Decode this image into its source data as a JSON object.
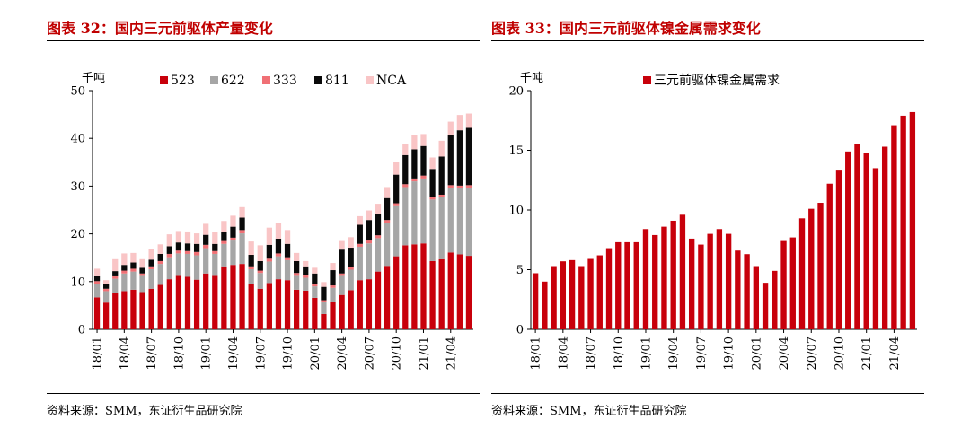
{
  "left": {
    "title": "图表 32：国内三元前驱体产量变化",
    "source": "资料来源：SMM，东证衍生品研究院"
  },
  "right": {
    "title": "图表 33：国内三元前驱体镍金属需求变化",
    "source": "资料来源：SMM，东证衍生品研究院"
  },
  "chart_data": [
    {
      "type": "bar",
      "stacked": true,
      "unit_label": "千吨",
      "ylim": [
        0,
        50
      ],
      "yticks": [
        0,
        10,
        20,
        30,
        40,
        50
      ],
      "categories": [
        "18/01",
        "18/02",
        "18/03",
        "18/04",
        "18/05",
        "18/06",
        "18/07",
        "18/08",
        "18/09",
        "18/10",
        "18/11",
        "18/12",
        "19/01",
        "19/02",
        "19/03",
        "19/04",
        "19/05",
        "19/06",
        "19/07",
        "19/08",
        "19/09",
        "19/10",
        "19/11",
        "19/12",
        "20/01",
        "20/02",
        "20/03",
        "20/04",
        "20/05",
        "20/06",
        "20/07",
        "20/08",
        "20/09",
        "20/10",
        "20/11",
        "20/12",
        "21/01",
        "21/02",
        "21/03",
        "21/04",
        "21/05",
        "21/06"
      ],
      "xtick_labels": [
        "18/01",
        "18/04",
        "18/07",
        "18/10",
        "19/01",
        "19/04",
        "19/07",
        "19/10",
        "20/01",
        "20/04",
        "20/07",
        "20/10",
        "21/01",
        "21/04"
      ],
      "legend_position": "top",
      "series": [
        {
          "name": "523",
          "color": "#c8000b",
          "values": [
            6.7,
            5.6,
            7.6,
            8.0,
            8.3,
            7.8,
            8.5,
            9.3,
            10.5,
            11.2,
            11.0,
            10.4,
            11.7,
            11.2,
            13.2,
            13.5,
            13.7,
            9.5,
            8.5,
            9.7,
            10.5,
            10.3,
            8.3,
            8.1,
            6.6,
            3.2,
            5.7,
            7.2,
            8.2,
            10.3,
            10.5,
            12.1,
            13.3,
            15.3,
            17.6,
            17.8,
            18.0,
            14.3,
            14.7,
            16.1,
            15.7,
            15.4
          ]
        },
        {
          "name": "622",
          "color": "#a6a6a6",
          "values": [
            2.8,
            2.4,
            3.0,
            3.7,
            3.8,
            3.4,
            4.1,
            4.4,
            4.6,
            4.7,
            4.8,
            5.1,
            5.3,
            4.6,
            4.7,
            5.1,
            6.4,
            3.1,
            3.3,
            4.5,
            4.8,
            4.2,
            2.9,
            2.7,
            2.4,
            2.5,
            3.0,
            4.0,
            4.3,
            7.0,
            7.5,
            7.0,
            9.0,
            10.5,
            12.2,
            13.2,
            13.6,
            12.9,
            13.0,
            13.6,
            13.9,
            14.3
          ]
        },
        {
          "name": "333",
          "color": "#f07075",
          "values": [
            0.6,
            0.5,
            0.5,
            0.6,
            0.6,
            0.5,
            0.6,
            0.6,
            0.7,
            0.6,
            0.6,
            0.7,
            0.7,
            0.6,
            0.6,
            0.6,
            0.7,
            0.6,
            0.5,
            0.6,
            0.6,
            0.6,
            0.6,
            0.5,
            0.5,
            0.4,
            0.5,
            0.5,
            0.5,
            0.6,
            0.6,
            0.6,
            0.6,
            0.6,
            0.6,
            0.6,
            0.6,
            0.5,
            0.5,
            0.5,
            0.5,
            0.5
          ]
        },
        {
          "name": "811",
          "color": "#0a0a0a",
          "values": [
            1.0,
            0.9,
            1.1,
            1.2,
            1.3,
            1.2,
            1.4,
            1.5,
            1.6,
            1.7,
            1.6,
            1.7,
            2.1,
            1.5,
            1.9,
            2.3,
            2.6,
            2.4,
            2.0,
            2.9,
            3.1,
            2.8,
            2.5,
            1.9,
            2.2,
            2.8,
            3.2,
            5.0,
            4.1,
            4.0,
            4.3,
            4.4,
            4.6,
            6.0,
            6.1,
            6.1,
            6.2,
            5.9,
            8.0,
            10.5,
            11.6,
            12.0
          ]
        },
        {
          "name": "NCA",
          "color": "#f9c5c6",
          "values": [
            1.6,
            0.9,
            2.5,
            2.4,
            2.0,
            1.8,
            2.2,
            2.0,
            2.5,
            2.4,
            2.5,
            2.2,
            2.3,
            2.4,
            2.3,
            2.3,
            2.2,
            2.8,
            3.3,
            3.6,
            3.2,
            2.9,
            1.7,
            1.1,
            1.2,
            1.0,
            1.5,
            1.8,
            2.2,
            1.8,
            2.0,
            2.2,
            2.3,
            2.6,
            2.4,
            3.0,
            2.5,
            2.4,
            3.3,
            2.8,
            3.2,
            3.0
          ]
        }
      ]
    },
    {
      "type": "bar",
      "unit_label": "千吨",
      "ylim": [
        0,
        20
      ],
      "yticks": [
        0,
        5,
        10,
        15,
        20
      ],
      "categories": [
        "18/01",
        "18/02",
        "18/03",
        "18/04",
        "18/05",
        "18/06",
        "18/07",
        "18/08",
        "18/09",
        "18/10",
        "18/11",
        "18/12",
        "19/01",
        "19/02",
        "19/03",
        "19/04",
        "19/05",
        "19/06",
        "19/07",
        "19/08",
        "19/09",
        "19/10",
        "19/11",
        "19/12",
        "20/01",
        "20/02",
        "20/03",
        "20/04",
        "20/05",
        "20/06",
        "20/07",
        "20/08",
        "20/09",
        "20/10",
        "20/11",
        "20/12",
        "21/01",
        "21/02",
        "21/03",
        "21/04",
        "21/05",
        "21/06"
      ],
      "xtick_labels": [
        "18/01",
        "18/04",
        "18/07",
        "18/10",
        "19/01",
        "19/04",
        "19/07",
        "19/10",
        "20/01",
        "20/04",
        "20/07",
        "20/10",
        "21/01",
        "21/04"
      ],
      "legend_position": "top-right",
      "series": [
        {
          "name": "三元前驱体镍金属需求",
          "color": "#c8000b",
          "values": [
            4.7,
            4.0,
            5.3,
            5.7,
            5.8,
            5.3,
            5.9,
            6.2,
            6.8,
            7.3,
            7.3,
            7.3,
            8.4,
            7.9,
            8.6,
            9.1,
            9.6,
            7.6,
            7.1,
            8.0,
            8.4,
            8.0,
            6.6,
            6.3,
            5.3,
            3.9,
            4.9,
            7.4,
            7.7,
            9.3,
            10.1,
            10.6,
            12.2,
            13.3,
            14.9,
            15.5,
            14.8,
            13.5,
            15.3,
            17.1,
            17.9,
            18.2
          ]
        }
      ]
    }
  ]
}
